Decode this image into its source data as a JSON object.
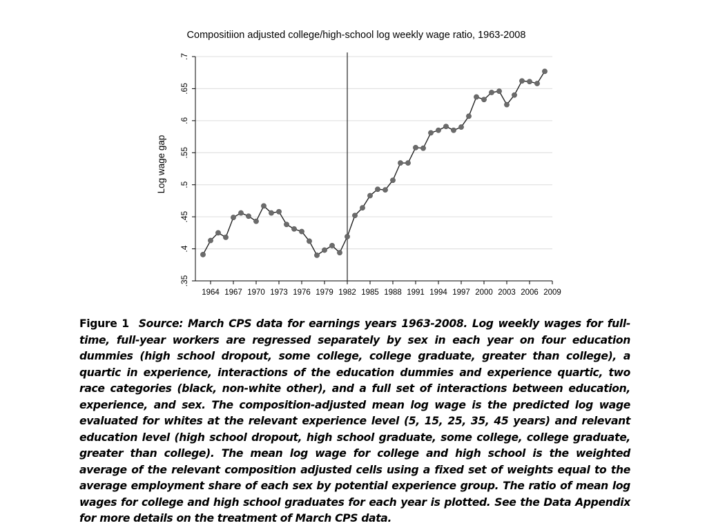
{
  "chart_data": {
    "type": "line",
    "title": "Compositiion adjusted college/high-school log weekly wage ratio, 1963-2008",
    "xlabel": "",
    "ylabel": "Log wage gap",
    "xlim": [
      1962,
      2009
    ],
    "ylim": [
      0.35,
      0.7
    ],
    "x_ticks": [
      1964,
      1967,
      1970,
      1973,
      1976,
      1979,
      1982,
      1985,
      1988,
      1991,
      1994,
      1997,
      2000,
      2003,
      2006,
      2009
    ],
    "y_ticks": [
      0.35,
      0.4,
      0.45,
      0.5,
      0.55,
      0.6,
      0.65,
      0.7
    ],
    "y_tick_labels": [
      ".35",
      ".4",
      ".45",
      ".5",
      ".55",
      ".6",
      ".65",
      ".7"
    ],
    "grid": "horizontal",
    "reference_line_x": 1982,
    "markers": true,
    "series": [
      {
        "x": [
          1963,
          1964,
          1965,
          1966,
          1967,
          1968,
          1969,
          1970,
          1971,
          1972,
          1973,
          1974,
          1975,
          1976,
          1977,
          1978,
          1979,
          1980,
          1981,
          1982,
          1983,
          1984,
          1985,
          1986,
          1987,
          1988,
          1989,
          1990,
          1991,
          1992,
          1993,
          1994,
          1995,
          1996,
          1997,
          1998,
          1999,
          2000,
          2001,
          2002,
          2003,
          2004,
          2005,
          2006,
          2007,
          2008
        ],
        "values": [
          0.391,
          0.413,
          0.425,
          0.418,
          0.449,
          0.456,
          0.451,
          0.443,
          0.467,
          0.456,
          0.458,
          0.438,
          0.431,
          0.427,
          0.412,
          0.39,
          0.398,
          0.405,
          0.394,
          0.419,
          0.452,
          0.464,
          0.483,
          0.493,
          0.492,
          0.507,
          0.534,
          0.534,
          0.558,
          0.557,
          0.581,
          0.585,
          0.591,
          0.585,
          0.59,
          0.607,
          0.637,
          0.633,
          0.644,
          0.646,
          0.625,
          0.64,
          0.662,
          0.661,
          0.658,
          0.677
        ]
      }
    ]
  },
  "caption": {
    "label": "Figure 1",
    "text": "Source: March CPS data for earnings years 1963-2008. Log weekly wages for full-time, full-year workers are regressed separately by sex in each year on four education dummies (high school dropout, some college, college graduate, greater than college), a quartic in experience, interactions of the education dummies and experience quartic, two race categories (black, non-white other), and a full set of interactions between education, experience, and sex. The composition-adjusted mean log wage is the predicted log wage evaluated for whites at the relevant experience level (5, 15, 25, 35, 45 years) and relevant education level (high school dropout, high school graduate, some college, college graduate, greater than college). The mean log wage for college and high school is the weighted average of the relevant composition adjusted cells using a fixed set of weights equal to the average employment share of each sex by potential experience group. The ratio of mean log wages for college and high school graduates for each year is plotted. See the Data Appendix for more details on the treatment of March CPS data."
  }
}
